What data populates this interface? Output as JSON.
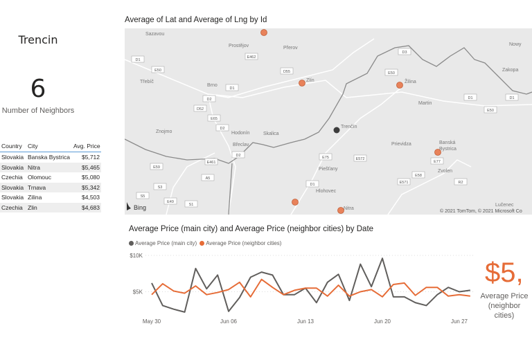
{
  "card": {
    "city": "Trencin",
    "neighbors_value": "6",
    "neighbors_label": "Number of Neighbors"
  },
  "table": {
    "headers": [
      "Country",
      "City",
      "Avg. Price"
    ],
    "rows": [
      [
        "Slovakia",
        "Banska Bystrica",
        "$5,712"
      ],
      [
        "Slovakia",
        "Nitra",
        "$5,465"
      ],
      [
        "Czechia",
        "Olomouc",
        "$5,080"
      ],
      [
        "Slovakia",
        "Trnava",
        "$5,342"
      ],
      [
        "Slovakia",
        "Zilina",
        "$4,503"
      ],
      [
        "Czechia",
        "Zlin",
        "$4,683"
      ]
    ]
  },
  "map": {
    "title": "Average of Lat and Average of Lng by Id",
    "labels": [
      "Sazavou",
      "Prostějov",
      "Přerov",
      "Třebíč",
      "Brno",
      "Zlín",
      "Žilina",
      "Martin",
      "Znojmo",
      "Hodonín",
      "Skalica",
      "Trenčín",
      "Břeclav",
      "Prievidza",
      "Banská",
      "Bystrica",
      "Piešťany",
      "Zvolen",
      "Hlohovec",
      "Nitra",
      "Lučenec",
      "Nowy",
      "Zakopa"
    ],
    "road_labels": [
      "D1",
      "E50",
      "E462",
      "D55",
      "D1",
      "D2",
      "D52",
      "E65",
      "D2",
      "D2",
      "E461",
      "A5",
      "S3",
      "E59",
      "S5",
      "E49",
      "S1",
      "D1",
      "E75",
      "E572",
      "E50",
      "D3",
      "D1",
      "E50",
      "D1",
      "E77",
      "E58",
      "E571",
      "R2"
    ],
    "attribution": "© 2021 TomTom, © 2021 Microsoft Co",
    "bing_label": "Bing",
    "main_color": "#3c3c3c",
    "neighbor_color": "#e8825a"
  },
  "kpi": {
    "value": "$5,",
    "label_line1": "Average Price",
    "label_line2": "(neighbor cities)"
  },
  "chart_data": {
    "type": "line",
    "title": "Average Price (main city) and Average Price (neighbor cities) by Date",
    "x": [
      "May 30",
      "May 31",
      "Jun 01",
      "Jun 02",
      "Jun 03",
      "Jun 04",
      "Jun 05",
      "Jun 06",
      "Jun 07",
      "Jun 08",
      "Jun 09",
      "Jun 10",
      "Jun 11",
      "Jun 12",
      "Jun 13",
      "Jun 14",
      "Jun 15",
      "Jun 16",
      "Jun 17",
      "Jun 18",
      "Jun 19",
      "Jun 20",
      "Jun 21",
      "Jun 22",
      "Jun 23",
      "Jun 24",
      "Jun 25",
      "Jun 26",
      "Jun 27",
      "Jun 28"
    ],
    "x_ticks": [
      "May 30",
      "Jun 06",
      "Jun 13",
      "Jun 20",
      "Jun 27"
    ],
    "y_ticks": [
      "$5K",
      "$10K"
    ],
    "ylim": [
      0,
      10000
    ],
    "legend": "top-left",
    "grid": true,
    "series": [
      {
        "name": "Average Price (main city)",
        "color": "#605e5c",
        "values": [
          6200,
          3100,
          2600,
          2200,
          8200,
          5400,
          7300,
          2300,
          4200,
          7000,
          7700,
          7300,
          4600,
          4600,
          5500,
          3500,
          6300,
          7400,
          3800,
          8800,
          5700,
          9600,
          4300,
          4300,
          3500,
          3100,
          4600,
          5600,
          5000,
          5200
        ]
      },
      {
        "name": "Average Price (neighbor cities)",
        "color": "#e66c37",
        "values": [
          4600,
          6100,
          5100,
          4800,
          5800,
          4600,
          4900,
          5300,
          6300,
          4300,
          6700,
          5600,
          4600,
          5200,
          5500,
          5500,
          4400,
          5900,
          4400,
          5000,
          5300,
          4300,
          6000,
          6200,
          4500,
          5600,
          5600,
          4400,
          4600,
          4400
        ]
      }
    ]
  }
}
